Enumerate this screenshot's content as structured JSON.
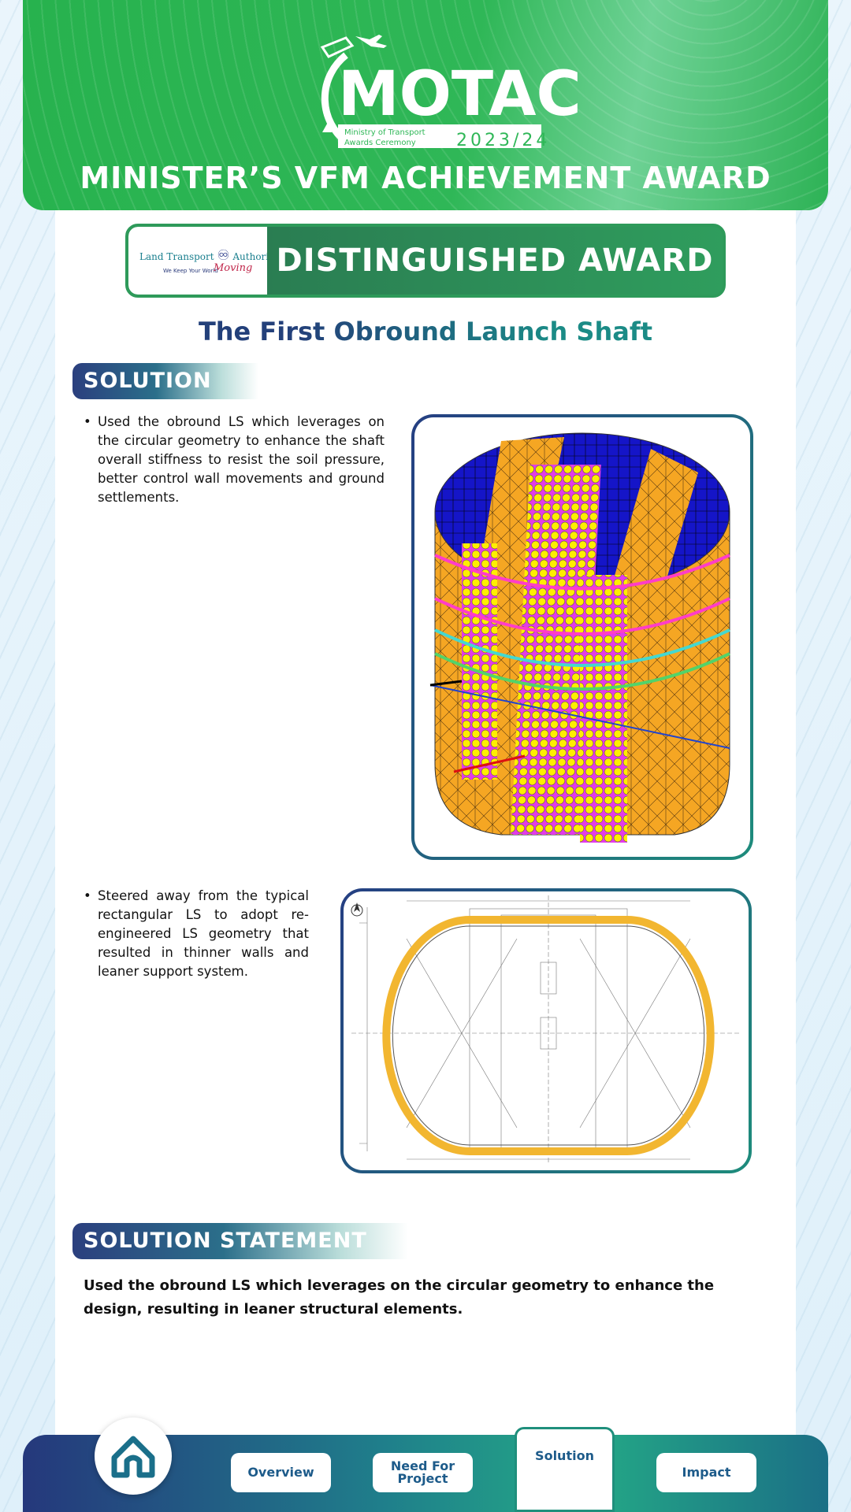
{
  "header": {
    "logo_text": "MOTAC",
    "logo_sub1": "Ministry of Transport",
    "logo_sub2": "Awards Ceremony",
    "logo_year": "2023/24",
    "award_title": "MINISTER’S VFM ACHIEVEMENT AWARD"
  },
  "banner": {
    "org_name_left": "Land Transport",
    "org_name_right": "Authority",
    "org_tagline": "We Keep Your World",
    "org_script": "Moving",
    "award_level": "DISTINGUISHED AWARD"
  },
  "project_title": "The First Obround Launch Shaft",
  "solution": {
    "heading": "SOLUTION",
    "bullet1": "Used the obround LS which leverages on the circular geometry to enhance the shaft overall stiffness to resist the soil pressure, better control wall movements and ground settlements.",
    "bullet2": "Steered away from the typical rectangular LS to adopt re-engineered LS geometry that resulted in thinner walls and leaner support system."
  },
  "statement": {
    "heading": "SOLUTION STATEMENT",
    "text": "Used the obround LS which leverages on the circular geometry to enhance the design, resulting in leaner structural elements."
  },
  "nav": {
    "overview": "Overview",
    "need_line1": "Need For",
    "need_line2": "Project",
    "solution": "Solution",
    "impact": "Impact",
    "active": "Solution"
  },
  "colors": {
    "header_green": "#2fb757",
    "banner_green": "#2e9a5a",
    "navy": "#23407a",
    "teal": "#1b8b86",
    "model_orange": "#f5a623",
    "model_yellow": "#ffee00",
    "model_magenta": "#e23ce8",
    "model_blue": "#1515c8"
  },
  "icons": {
    "home": "home-icon",
    "north_arrow": "north-arrow-icon"
  }
}
